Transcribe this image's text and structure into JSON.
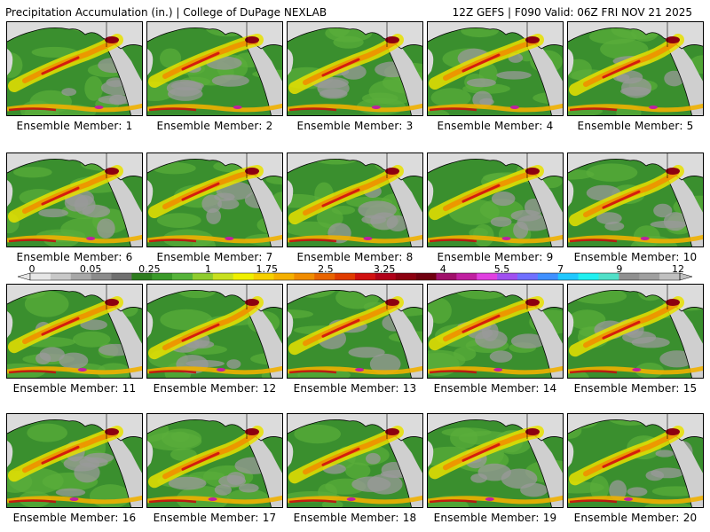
{
  "header": {
    "title_left": "Precipitation Accumulation (in.) | College of DuPage NEXLAB",
    "title_right": "12Z GEFS | F090 Valid: 06Z FRI NOV 21 2025"
  },
  "panels": [
    "Ensemble Member: 1",
    "Ensemble Member: 2",
    "Ensemble Member: 3",
    "Ensemble Member: 4",
    "Ensemble Member: 5",
    "Ensemble Member: 6",
    "Ensemble Member: 7",
    "Ensemble Member: 8",
    "Ensemble Member: 9",
    "Ensemble Member: 10",
    "Ensemble Member: 11",
    "Ensemble Member: 12",
    "Ensemble Member: 13",
    "Ensemble Member: 14",
    "Ensemble Member: 15",
    "Ensemble Member: 16",
    "Ensemble Member: 17",
    "Ensemble Member: 18",
    "Ensemble Member: 19",
    "Ensemble Member: 20"
  ],
  "legend": {
    "tick_labels": [
      "0",
      "0.05",
      "0.25",
      "1",
      "1.75",
      "2.5",
      "3.25",
      "4",
      "5.5",
      "7",
      "9",
      "12"
    ],
    "colors": [
      "#e6e6e6",
      "#c8c8c8",
      "#a8a8a8",
      "#8c8c8c",
      "#707070",
      "#2e7d1f",
      "#3a9a2a",
      "#56b33a",
      "#8fcc2e",
      "#c8e020",
      "#f0f000",
      "#f7d000",
      "#f5b000",
      "#f08c00",
      "#e86400",
      "#e03c00",
      "#d01010",
      "#b00018",
      "#8c0010",
      "#700010",
      "#a0106a",
      "#c020a0",
      "#e040e0",
      "#a050f0",
      "#7070ff",
      "#4090ff",
      "#20c8ff",
      "#20f0f0",
      "#50e0c8",
      "#909090",
      "#a0a0a0",
      "#c0c0c0"
    ]
  }
}
